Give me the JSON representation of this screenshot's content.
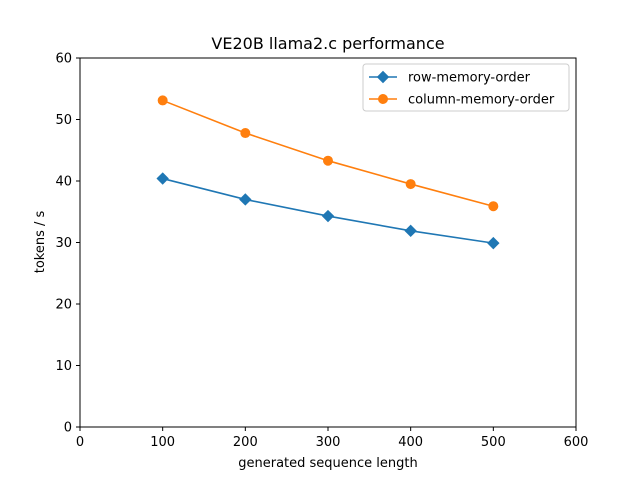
{
  "chart_data": {
    "type": "line",
    "title": "VE20B llama2.c performance",
    "xlabel": "generated sequence length",
    "ylabel": "tokens / s",
    "xlim": [
      0,
      600
    ],
    "ylim": [
      0,
      60
    ],
    "xticks": [
      "0",
      "100",
      "200",
      "300",
      "400",
      "500",
      "600"
    ],
    "yticks": [
      "0",
      "10",
      "20",
      "30",
      "40",
      "50",
      "60"
    ],
    "grid": false,
    "legend_position": "top-right",
    "x": [
      100,
      200,
      300,
      400,
      500
    ],
    "series": [
      {
        "name": "row-memory-order",
        "values": [
          40.4,
          37.0,
          34.3,
          31.9,
          29.9
        ],
        "color": "#1f77b4",
        "marker": "diamond"
      },
      {
        "name": "column-memory-order",
        "values": [
          53.1,
          47.8,
          43.3,
          39.5,
          35.9
        ],
        "color": "#ff7f0e",
        "marker": "circle"
      }
    ]
  }
}
